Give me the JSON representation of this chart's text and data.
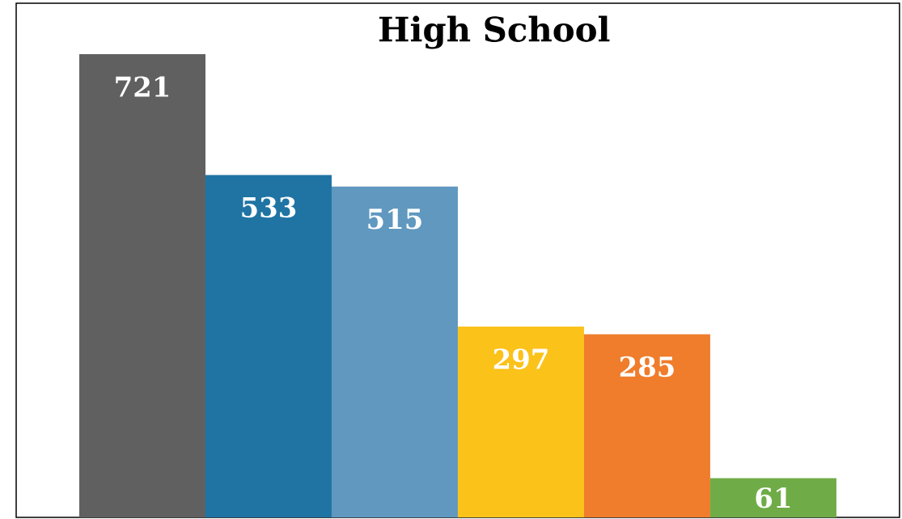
{
  "chart_data": {
    "type": "bar",
    "title": "High School",
    "categories": [
      null,
      null,
      null,
      null,
      null,
      null
    ],
    "values": [
      721,
      533,
      515,
      297,
      285,
      61
    ],
    "colors": [
      "#606060",
      "#1f74a4",
      "#6098c0",
      "#fbc21a",
      "#ef7d2c",
      "#6fac47"
    ],
    "data_labels": true
  }
}
